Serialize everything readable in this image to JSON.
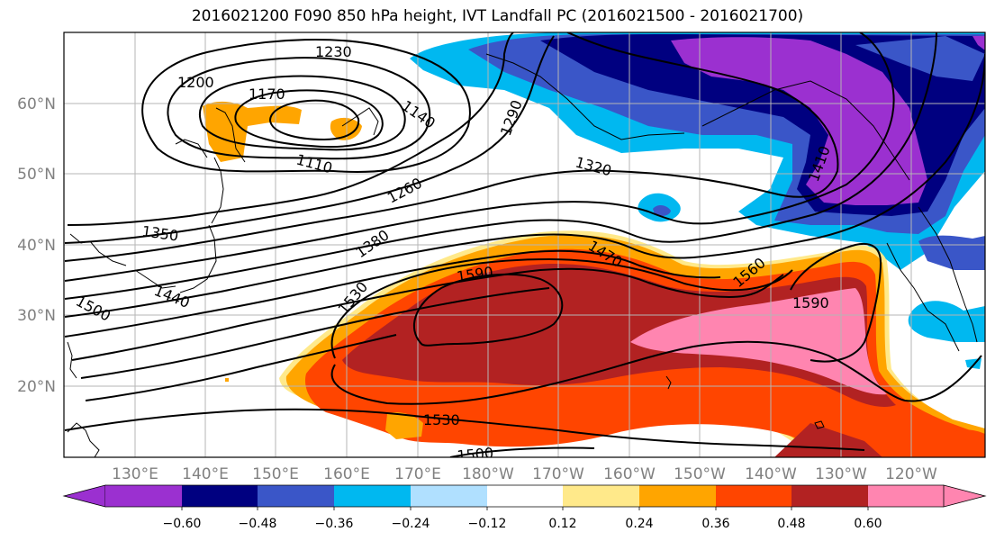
{
  "title": "2016021200 F090 850 hPa height, IVT Landfall PC (2016021500 - 2016021700)",
  "map": {
    "lat_ticks": [
      "20°N",
      "30°N",
      "40°N",
      "50°N",
      "60°N"
    ],
    "lon_ticks": [
      "130°E",
      "140°E",
      "150°E",
      "160°E",
      "170°E",
      "180°W",
      "170°W",
      "160°W",
      "150°W",
      "140°W",
      "130°W",
      "120°W"
    ],
    "gridlines": true,
    "height_contour_labels": [
      "1230",
      "1200",
      "1170",
      "1140",
      "1110",
      "1290",
      "1320",
      "1260",
      "1350",
      "1380",
      "1410",
      "1440",
      "1470",
      "1500",
      "1530",
      "1560",
      "1590",
      "1590",
      "1530",
      "1500"
    ],
    "fill_colors": {
      "purple": "#9b30d0",
      "navy": "#000080",
      "royal": "#3a56c8",
      "sky": "#00b8f0",
      "light_sky": "#b0e0ff",
      "white": "#ffffff",
      "pale_yellow": "#ffe98a",
      "orange": "#ffa500",
      "red_orange": "#ff4500",
      "dark_red": "#b22222",
      "pink": "#ff85b0"
    }
  },
  "colorbar": {
    "tick_labels": [
      "−0.60",
      "−0.48",
      "−0.36",
      "−0.24",
      "−0.12",
      "0.12",
      "0.24",
      "0.36",
      "0.48",
      "0.60"
    ],
    "colors": [
      "#9b30d0",
      "#000080",
      "#3a56c8",
      "#00b8f0",
      "#b0e0ff",
      "#ffffff",
      "#ffe98a",
      "#ffa500",
      "#ff4500",
      "#b22222",
      "#ff85b0"
    ]
  }
}
